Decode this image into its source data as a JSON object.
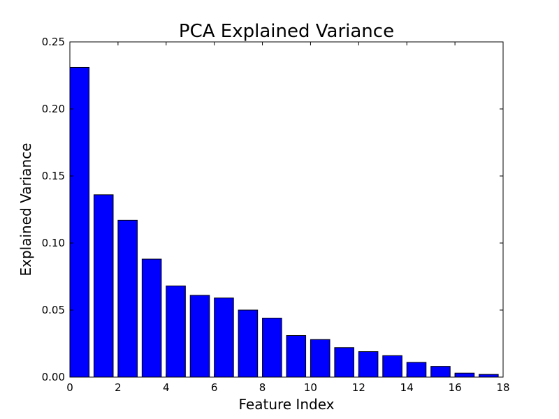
{
  "chart_data": {
    "type": "bar",
    "title": "PCA Explained Variance",
    "xlabel": "Feature Index",
    "ylabel": "Explained Variance",
    "x": [
      0,
      1,
      2,
      3,
      4,
      5,
      6,
      7,
      8,
      9,
      10,
      11,
      12,
      13,
      14,
      15,
      16,
      17
    ],
    "values": [
      0.231,
      0.136,
      0.117,
      0.088,
      0.068,
      0.061,
      0.059,
      0.05,
      0.044,
      0.031,
      0.028,
      0.022,
      0.019,
      0.016,
      0.011,
      0.008,
      0.003,
      0.002
    ],
    "xlim": [
      0,
      18
    ],
    "ylim": [
      0,
      0.25
    ],
    "xticks": [
      0,
      2,
      4,
      6,
      8,
      10,
      12,
      14,
      16,
      18
    ],
    "xtick_labels": [
      "0",
      "2",
      "4",
      "6",
      "8",
      "10",
      "12",
      "14",
      "16",
      "18"
    ],
    "yticks": [
      0,
      0.05,
      0.1,
      0.15,
      0.2,
      0.25
    ],
    "ytick_labels": [
      "0.00",
      "0.05",
      "0.10",
      "0.15",
      "0.20",
      "0.25"
    ],
    "bar_width": 0.8,
    "bar_color": "#0000ff",
    "edge_color": "#000000",
    "grid": false,
    "legend": "none"
  }
}
